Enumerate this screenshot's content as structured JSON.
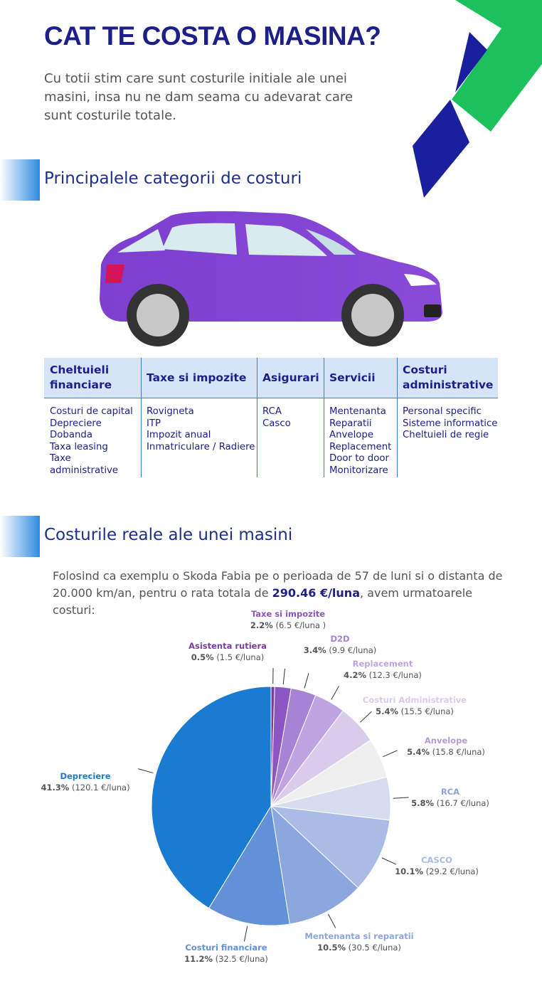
{
  "header": {
    "title": "CAT TE COSTA O MASINA?",
    "intro": "Cu totii stim care sunt costurile initiale ale unei masini, insa nu ne dam seama cu adevarat care sunt costurile totale."
  },
  "section1": {
    "title": "Principalele categorii de costuri"
  },
  "table": {
    "columns": [
      {
        "header": "Cheltuieli financiare",
        "items": [
          "Costuri de capital",
          "Depreciere",
          "Dobanda",
          "Taxa leasing",
          "Taxe administrative"
        ]
      },
      {
        "header": "Taxe si impozite",
        "items": [
          "Rovigneta",
          "ITP",
          "Impozit anual",
          "Inmatriculare / Radiere"
        ]
      },
      {
        "header": "Asigurari",
        "items": [
          "RCA",
          "Casco"
        ]
      },
      {
        "header": "Servicii",
        "items": [
          "Mentenanta",
          "Reparatii",
          "Anvelope",
          "Replacement",
          "Door to door",
          "Monitorizare"
        ]
      },
      {
        "header": "Costuri administrative",
        "items": [
          "Personal specific",
          "Sisteme informatice",
          "Cheltuieli de regie"
        ]
      }
    ]
  },
  "section2": {
    "title": "Costurile reale ale unei masini",
    "text_before": "Folosind ca exemplu o Skoda Fabia pe o perioada de 57 de luni si o distanta de 20.000 km/an, pentru o rata totala de ",
    "highlight": "290.46 €/luna",
    "text_after": ", avem urmatoarele costuri:"
  },
  "chart_data": {
    "type": "pie",
    "categories": [
      "Asistenta rutiera",
      "Taxe si impozite",
      "D2D",
      "Replacement",
      "Costuri Administrative",
      "Anvelope",
      "RCA",
      "CASCO",
      "Mentenanta si reparatii",
      "Costuri financiare",
      "Depreciere"
    ],
    "values": [
      0.5,
      2.2,
      3.4,
      4.2,
      5.4,
      5.4,
      5.8,
      10.1,
      10.5,
      11.2,
      41.3
    ],
    "value_labels": [
      "0.5%",
      "2.2%",
      "3.4%",
      "4.2%",
      "5.4%",
      "5.4%",
      "5.8%",
      "10.1%",
      "10.5%",
      "11.2%",
      "41.3%"
    ],
    "amount_labels": [
      "(1.5 €/luna)",
      "(6.5 €/luna )",
      "(9.9 €/luna)",
      "(12.3 €/luna)",
      "(15.5 €/luna)",
      "(15.8 €/luna)",
      "(16.7 €/luna)",
      "(29.2 €/luna)",
      "(30.5 €/luna)",
      "(32.5 €/luna)",
      "(120.1 €/luna)"
    ],
    "colors": [
      "#7a3d9e",
      "#8c55c4",
      "#a783d6",
      "#bea5e2",
      "#d9ccea",
      "#efefef",
      "#d6ddef",
      "#aabbe6",
      "#8ca6de",
      "#6291d8",
      "#1a7bd3"
    ]
  }
}
